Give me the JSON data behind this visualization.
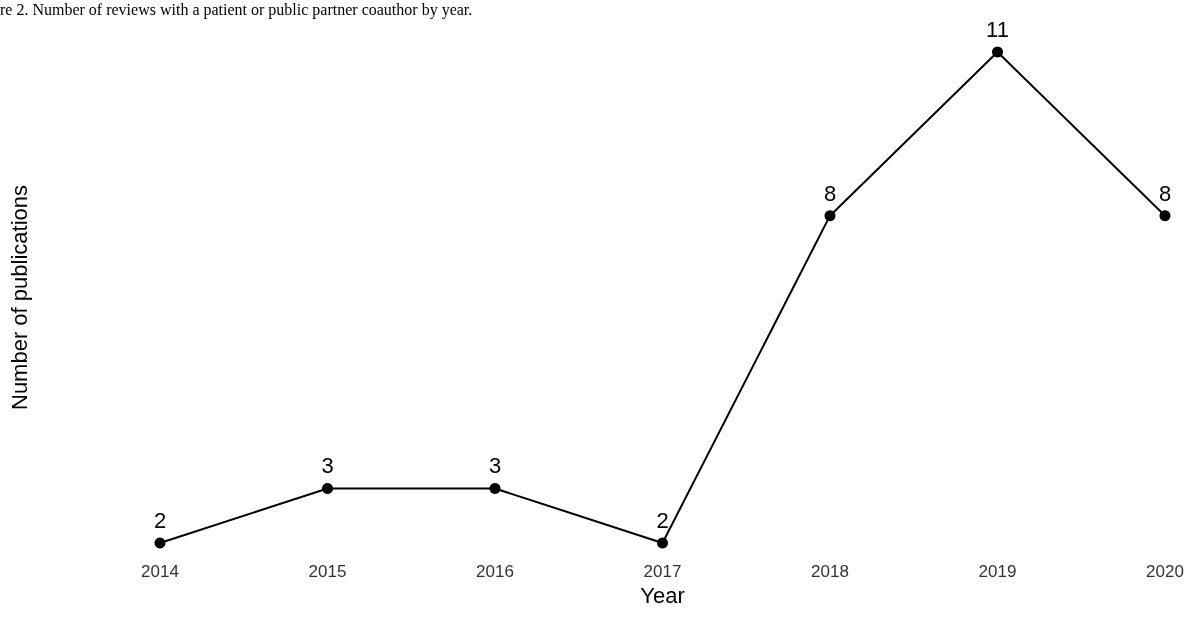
{
  "chart_data": {
    "type": "line",
    "title": "re 2. Number of reviews with a patient or public partner coauthor by year.",
    "xlabel": "Year",
    "ylabel": "Number of publications",
    "categories": [
      "2014",
      "2015",
      "2016",
      "2017",
      "2018",
      "2019",
      "2020"
    ],
    "series": [
      {
        "color": "#000000",
        "values": [
          2,
          3,
          3,
          2,
          8,
          11,
          8
        ]
      }
    ],
    "tick_labels": "x",
    "data_labels": true,
    "marker": "circle",
    "line_style": "solid"
  }
}
